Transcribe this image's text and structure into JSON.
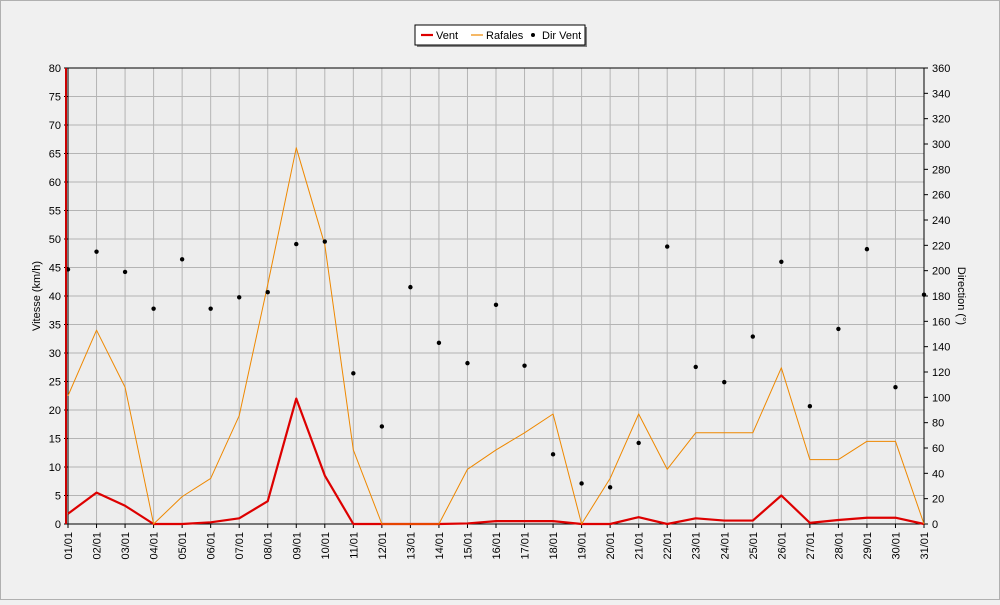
{
  "chart_data": {
    "type": "line",
    "categories": [
      "01/01",
      "02/01",
      "03/01",
      "04/01",
      "05/01",
      "06/01",
      "07/01",
      "08/01",
      "09/01",
      "10/01",
      "11/01",
      "12/01",
      "13/01",
      "14/01",
      "15/01",
      "16/01",
      "17/01",
      "18/01",
      "19/01",
      "20/01",
      "21/01",
      "22/01",
      "23/01",
      "24/01",
      "25/01",
      "26/01",
      "27/01",
      "28/01",
      "29/01",
      "30/01",
      "31/01"
    ],
    "ylabel": "Vitesse (km/h)",
    "ylabel_right": "Direction (°)",
    "ylim": [
      0,
      80
    ],
    "ylim_right": [
      0,
      360
    ],
    "yticks": [
      0,
      5,
      10,
      15,
      20,
      25,
      30,
      35,
      40,
      45,
      50,
      55,
      60,
      65,
      70,
      75,
      80
    ],
    "yticks_right": [
      0,
      20,
      40,
      60,
      80,
      100,
      120,
      140,
      160,
      180,
      200,
      220,
      240,
      260,
      280,
      300,
      320,
      340,
      360
    ],
    "grid": true,
    "legend_position": "top-center",
    "series": [
      {
        "name": "Vent",
        "axis": "left",
        "color": "#dd0000",
        "style": "line-thick",
        "values": [
          1.8,
          5.5,
          3.2,
          0,
          0,
          0.3,
          1,
          4,
          22,
          8.5,
          0,
          0,
          0,
          0,
          0.1,
          0.5,
          0.5,
          0.5,
          0,
          0,
          1.2,
          0,
          1,
          0.6,
          0.6,
          5,
          0.2,
          0.7,
          1.1,
          1.1,
          0
        ]
      },
      {
        "name": "Rafales",
        "axis": "left",
        "color": "#ee8800",
        "style": "line-thin",
        "values": [
          22.5,
          34,
          24,
          0,
          4.8,
          8,
          19,
          42,
          66,
          49,
          13,
          0,
          0,
          0,
          9.6,
          13,
          16,
          19.3,
          0,
          8,
          19.3,
          9.6,
          16,
          16,
          16,
          27.4,
          11.3,
          11.3,
          14.5,
          14.5,
          0
        ]
      },
      {
        "name": "Dir Vent",
        "axis": "right",
        "color": "#000000",
        "style": "points",
        "values": [
          201,
          215,
          199,
          170,
          209,
          170,
          179,
          183,
          221,
          223,
          119,
          77,
          187,
          143,
          127,
          173,
          125,
          55,
          32,
          29,
          64,
          219,
          124,
          112,
          148,
          207,
          93,
          154,
          217,
          108,
          181
        ]
      }
    ]
  }
}
